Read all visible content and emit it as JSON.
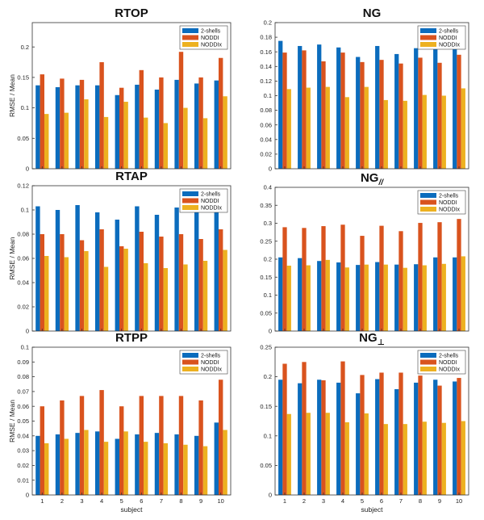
{
  "figure": {
    "subjects": [
      1,
      2,
      3,
      4,
      5,
      6,
      7,
      8,
      9,
      10
    ],
    "legend": [
      "2-shells",
      "NODDI",
      "NODDIx"
    ],
    "colors": {
      "2-shells": "#0b6cbd",
      "NODDI": "#d9531e",
      "NODDIx": "#edb120"
    }
  },
  "chart_data": [
    {
      "type": "bar",
      "title": "RTOP",
      "title_sub": "",
      "xlabel": "",
      "ylabel": "RMSE / Mean",
      "categories": [
        "1",
        "2",
        "3",
        "4",
        "5",
        "6",
        "7",
        "8",
        "9",
        "10"
      ],
      "ylim": [
        0,
        0.24
      ],
      "yticks": [
        0,
        0.05,
        0.1,
        0.15,
        0.2
      ],
      "ytick_labels": [
        "0",
        "0.05",
        "0.1",
        "0.15",
        "0.2"
      ],
      "show_xticks": false,
      "legend": "top-right",
      "series": [
        {
          "name": "2-shells",
          "values": [
            0.137,
            0.134,
            0.137,
            0.137,
            0.121,
            0.138,
            0.13,
            0.146,
            0.14,
            0.145
          ]
        },
        {
          "name": "NODDI",
          "values": [
            0.155,
            0.148,
            0.146,
            0.175,
            0.133,
            0.162,
            0.15,
            0.192,
            0.15,
            0.182
          ]
        },
        {
          "name": "NODDIx",
          "values": [
            0.09,
            0.092,
            0.114,
            0.085,
            0.11,
            0.084,
            0.075,
            0.1,
            0.083,
            0.119
          ]
        }
      ]
    },
    {
      "type": "bar",
      "title": "NG",
      "title_sub": "",
      "xlabel": "",
      "ylabel": "",
      "categories": [
        "1",
        "2",
        "3",
        "4",
        "5",
        "6",
        "7",
        "8",
        "9",
        "10"
      ],
      "ylim": [
        0,
        0.2
      ],
      "yticks": [
        0,
        0.02,
        0.04,
        0.06,
        0.08,
        0.1,
        0.12,
        0.14,
        0.16,
        0.18,
        0.2
      ],
      "ytick_labels": [
        "0",
        "0.02",
        "0.04",
        "0.06",
        "0.08",
        "0.1",
        "0.12",
        "0.14",
        "0.16",
        "0.18",
        "0.2"
      ],
      "show_xticks": false,
      "legend": "top-right",
      "series": [
        {
          "name": "2-shells",
          "values": [
            0.175,
            0.168,
            0.17,
            0.166,
            0.153,
            0.168,
            0.157,
            0.165,
            0.175,
            0.169
          ]
        },
        {
          "name": "NODDI",
          "values": [
            0.159,
            0.162,
            0.147,
            0.159,
            0.146,
            0.149,
            0.144,
            0.152,
            0.145,
            0.156
          ]
        },
        {
          "name": "NODDIx",
          "values": [
            0.109,
            0.111,
            0.112,
            0.098,
            0.112,
            0.094,
            0.093,
            0.101,
            0.1,
            0.11
          ]
        }
      ]
    },
    {
      "type": "bar",
      "title": "RTAP",
      "title_sub": "",
      "xlabel": "",
      "ylabel": "RMSE / Mean",
      "categories": [
        "1",
        "2",
        "3",
        "4",
        "5",
        "6",
        "7",
        "8",
        "9",
        "10"
      ],
      "ylim": [
        0,
        0.12
      ],
      "yticks": [
        0,
        0.02,
        0.04,
        0.06,
        0.08,
        0.1,
        0.12
      ],
      "ytick_labels": [
        "0",
        "0.02",
        "0.04",
        "0.06",
        "0.08",
        "0.1",
        "0.12"
      ],
      "show_xticks": false,
      "legend": "top-right",
      "series": [
        {
          "name": "2-shells",
          "values": [
            0.103,
            0.1,
            0.104,
            0.098,
            0.092,
            0.103,
            0.096,
            0.102,
            0.103,
            0.1
          ]
        },
        {
          "name": "NODDI",
          "values": [
            0.08,
            0.08,
            0.075,
            0.084,
            0.07,
            0.082,
            0.078,
            0.08,
            0.076,
            0.084
          ]
        },
        {
          "name": "NODDIx",
          "values": [
            0.062,
            0.061,
            0.066,
            0.053,
            0.068,
            0.056,
            0.052,
            0.055,
            0.058,
            0.067
          ]
        }
      ]
    },
    {
      "type": "bar",
      "title": "NG",
      "title_sub": "//",
      "xlabel": "",
      "ylabel": "",
      "categories": [
        "1",
        "2",
        "3",
        "4",
        "5",
        "6",
        "7",
        "8",
        "9",
        "10"
      ],
      "ylim": [
        0,
        0.4
      ],
      "yticks": [
        0,
        0.05,
        0.1,
        0.15,
        0.2,
        0.25,
        0.3,
        0.35,
        0.4
      ],
      "ytick_labels": [
        "0",
        "0.05",
        "0.1",
        "0.15",
        "0.2",
        "0.25",
        "0.3",
        "0.35",
        "0.4"
      ],
      "show_xticks": false,
      "legend": "top-right",
      "series": [
        {
          "name": "2-shells",
          "values": [
            0.205,
            0.203,
            0.195,
            0.191,
            0.184,
            0.192,
            0.185,
            0.186,
            0.205,
            0.205
          ]
        },
        {
          "name": "NODDI",
          "values": [
            0.289,
            0.287,
            0.292,
            0.296,
            0.265,
            0.293,
            0.278,
            0.301,
            0.303,
            0.312
          ]
        },
        {
          "name": "NODDIx",
          "values": [
            0.182,
            0.183,
            0.198,
            0.177,
            0.185,
            0.185,
            0.176,
            0.183,
            0.187,
            0.208
          ]
        }
      ]
    },
    {
      "type": "bar",
      "title": "RTPP",
      "title_sub": "",
      "xlabel": "subject",
      "ylabel": "RMSE / Mean",
      "categories": [
        "1",
        "2",
        "3",
        "4",
        "5",
        "6",
        "7",
        "8",
        "9",
        "10"
      ],
      "ylim": [
        0,
        0.1
      ],
      "yticks": [
        0,
        0.01,
        0.02,
        0.03,
        0.04,
        0.05,
        0.06,
        0.07,
        0.08,
        0.09,
        0.1
      ],
      "ytick_labels": [
        "0",
        "0.01",
        "0.02",
        "0.03",
        "0.04",
        "0.05",
        "0.06",
        "0.07",
        "0.08",
        "0.09",
        "0.1"
      ],
      "show_xticks": true,
      "legend": "top-right",
      "series": [
        {
          "name": "2-shells",
          "values": [
            0.04,
            0.041,
            0.042,
            0.043,
            0.038,
            0.041,
            0.042,
            0.041,
            0.04,
            0.049
          ]
        },
        {
          "name": "NODDI",
          "values": [
            0.06,
            0.064,
            0.067,
            0.071,
            0.06,
            0.067,
            0.067,
            0.067,
            0.064,
            0.078
          ]
        },
        {
          "name": "NODDIx",
          "values": [
            0.035,
            0.038,
            0.044,
            0.036,
            0.043,
            0.036,
            0.035,
            0.034,
            0.033,
            0.044
          ]
        }
      ]
    },
    {
      "type": "bar",
      "title": "NG",
      "title_sub": "⊥",
      "xlabel": "subject",
      "ylabel": "",
      "categories": [
        "1",
        "2",
        "3",
        "4",
        "5",
        "6",
        "7",
        "8",
        "9",
        "10"
      ],
      "ylim": [
        0,
        0.25
      ],
      "yticks": [
        0,
        0.05,
        0.1,
        0.15,
        0.2,
        0.25
      ],
      "ytick_labels": [
        "0",
        "0.05",
        "0.1",
        "0.15",
        "0.2",
        "0.25"
      ],
      "show_xticks": true,
      "legend": "top-right",
      "series": [
        {
          "name": "2-shells",
          "values": [
            0.195,
            0.189,
            0.195,
            0.19,
            0.172,
            0.196,
            0.179,
            0.19,
            0.195,
            0.192
          ]
        },
        {
          "name": "NODDI",
          "values": [
            0.222,
            0.225,
            0.194,
            0.226,
            0.203,
            0.207,
            0.207,
            0.202,
            0.185,
            0.198
          ]
        },
        {
          "name": "NODDIx",
          "values": [
            0.137,
            0.139,
            0.139,
            0.123,
            0.138,
            0.12,
            0.12,
            0.124,
            0.122,
            0.125
          ]
        }
      ]
    }
  ]
}
